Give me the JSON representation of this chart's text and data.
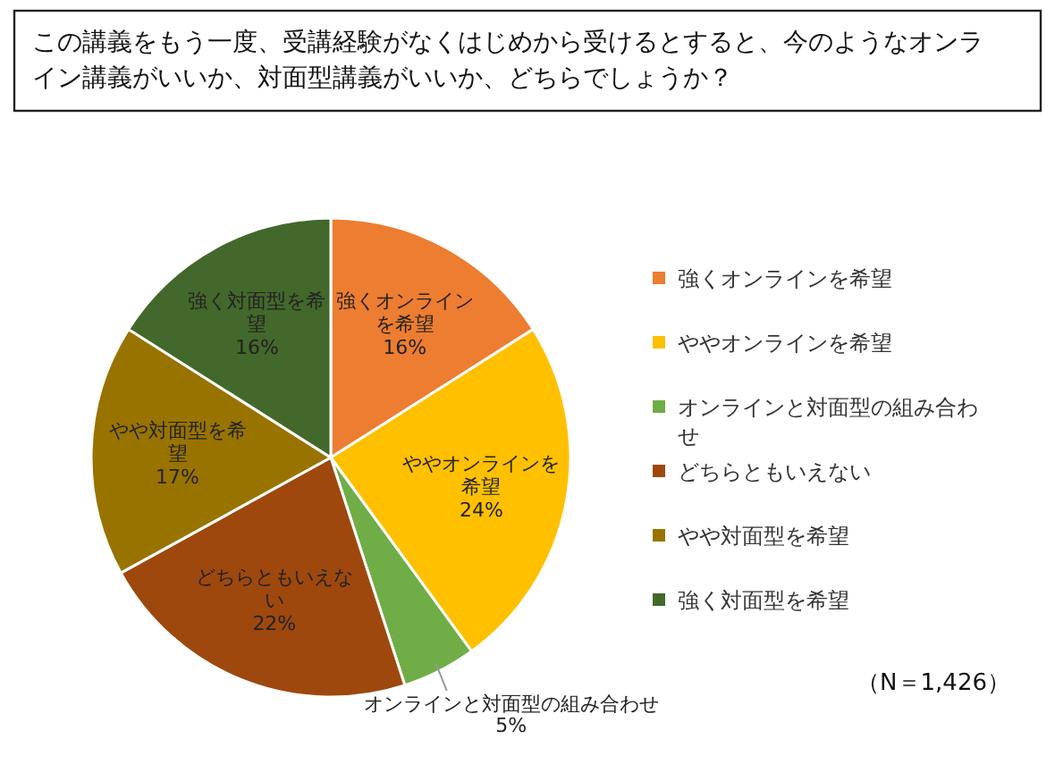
{
  "chart_data": {
    "type": "pie",
    "title": "この講義をもう一度、受講経験がなくはじめから受けるとすると、今のようなオンライン講義がいいか、対面型講義がいいか、どちらでしょうか？",
    "categories": [
      "強くオンラインを希望",
      "ややオンラインを希望",
      "オンラインと対面型の組み合わせ",
      "どちらともいえない",
      "やや対面型を希望",
      "強く対面型を希望"
    ],
    "values": [
      16,
      24,
      5,
      22,
      17,
      16
    ],
    "colors": [
      "#ed7d31",
      "#ffc000",
      "#70ad47",
      "#9e480e",
      "#997300",
      "#43682b"
    ],
    "value_labels": [
      "16%",
      "24%",
      "5%",
      "22%",
      "17%",
      "16%"
    ],
    "legend": "right",
    "annotations": [
      "（N＝1,426）"
    ]
  }
}
